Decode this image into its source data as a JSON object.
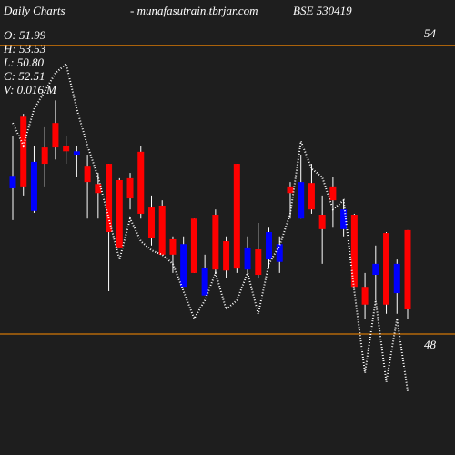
{
  "chart_data": {
    "type": "candlestick",
    "title": "Daily Charts",
    "site": "- munafasutrain.tbrjar.com",
    "symbol": "BSE 530419",
    "info": [
      "O: 51.99",
      "H: 53.53",
      "L: 50.80",
      "C: 52.51",
      "V: 0.016  M"
    ],
    "up_color": "#0000ff",
    "down_color": "#ff0000",
    "line_color": "#ffffff",
    "level_color": "#ff8c00",
    "ylim": [
      45.48,
      54.95
    ],
    "yticks": [
      48,
      54
    ],
    "open": [
      51.03,
      52.52,
      50.56,
      51.88,
      52.39,
      51.92,
      51.73,
      51.5,
      51.12,
      51.54,
      51.2,
      51.24,
      51.79,
      50.63,
      50.67,
      49.97,
      48.98,
      50.4,
      48.8,
      50.48,
      49.93,
      51.54,
      49.34,
      49.76,
      49.55,
      49.5,
      51.07,
      50.4,
      51.14,
      50.48,
      51.07,
      50.18,
      50.48,
      48.98,
      49.23,
      50.1,
      48.85,
      50.16
    ],
    "high": [
      52.11,
      52.58,
      51.92,
      52.3,
      52.86,
      52.11,
      51.92,
      51.73,
      51.35,
      51.54,
      51.24,
      51.35,
      51.92,
      50.88,
      50.78,
      50.03,
      50.03,
      50.4,
      49.65,
      50.59,
      50.03,
      51.54,
      50.03,
      50.31,
      50.21,
      50.03,
      51.16,
      51.73,
      51.54,
      50.88,
      51.26,
      50.78,
      50.5,
      49.27,
      49.84,
      50.12,
      49.55,
      50.16
    ],
    "low": [
      50.37,
      50.88,
      50.52,
      51.07,
      51.63,
      51.54,
      51.26,
      50.4,
      50.4,
      48.89,
      49.8,
      50.59,
      50.4,
      49.84,
      49.65,
      49.27,
      48.98,
      49.27,
      48.8,
      49.27,
      49.17,
      49.27,
      49.27,
      49.17,
      49.36,
      49.27,
      50.4,
      50.4,
      50.5,
      49.46,
      50.21,
      50.03,
      48.98,
      48.32,
      48.7,
      48.42,
      48.42,
      48.32
    ],
    "close": [
      51.29,
      51.07,
      51.58,
      51.54,
      51.88,
      51.8,
      51.8,
      51.16,
      50.93,
      50.12,
      49.8,
      50.82,
      50.5,
      49.99,
      49.65,
      49.65,
      49.87,
      49.27,
      49.38,
      49.34,
      49.32,
      49.36,
      49.8,
      49.23,
      50.12,
      49.87,
      50.93,
      51.16,
      50.59,
      50.18,
      50.78,
      50.59,
      48.98,
      48.61,
      49.46,
      48.61,
      49.46,
      48.51
    ],
    "line": [
      52.39,
      51.92,
      52.68,
      53.05,
      53.43,
      53.62,
      52.68,
      51.92,
      51.26,
      50.4,
      49.55,
      50.4,
      49.93,
      49.74,
      49.65,
      49.46,
      48.89,
      48.32,
      48.7,
      49.27,
      48.51,
      48.7,
      49.27,
      48.42,
      49.46,
      49.84,
      50.5,
      52.01,
      51.44,
      51.26,
      50.59,
      50.78,
      48.89,
      47.19,
      48.7,
      47.0,
      48.32,
      46.81
    ]
  }
}
